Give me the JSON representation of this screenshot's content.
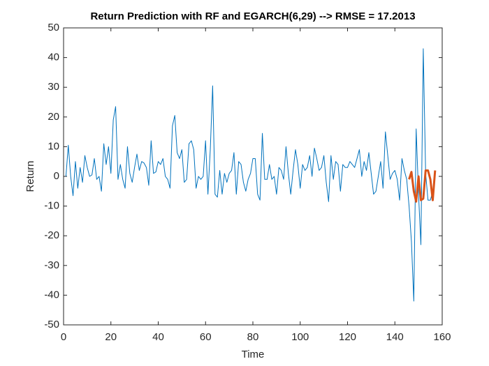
{
  "chart_data": {
    "type": "line",
    "title": "Return Prediction with RF and EGARCH(6,29) --> RMSE = 17.2013",
    "x_label": "Time",
    "y_label": "Return",
    "xlim": [
      0,
      160
    ],
    "xticks": [
      0,
      20,
      40,
      60,
      80,
      100,
      120,
      140,
      160
    ],
    "ylim": [
      -50,
      50
    ],
    "yticks": [
      -50,
      -40,
      -30,
      -20,
      -10,
      0,
      10,
      20,
      30,
      40,
      50
    ],
    "grid": false,
    "series": [
      {
        "color": "#0072bd",
        "width": 1,
        "x": [
          1,
          2,
          3,
          4,
          5,
          6,
          7,
          8,
          9,
          10,
          11,
          12,
          13,
          14,
          15,
          16,
          17,
          18,
          19,
          20,
          21,
          22,
          23,
          24,
          25,
          26,
          27,
          28,
          29,
          30,
          31,
          32,
          33,
          34,
          35,
          36,
          37,
          38,
          39,
          40,
          41,
          42,
          43,
          44,
          45,
          46,
          47,
          48,
          49,
          50,
          51,
          52,
          53,
          54,
          55,
          56,
          57,
          58,
          59,
          60,
          61,
          62,
          63,
          64,
          65,
          66,
          67,
          68,
          69,
          70,
          71,
          72,
          73,
          74,
          75,
          76,
          77,
          78,
          79,
          80,
          81,
          82,
          83,
          84,
          85,
          86,
          87,
          88,
          89,
          90,
          91,
          92,
          93,
          94,
          95,
          96,
          97,
          98,
          99,
          100,
          101,
          102,
          103,
          104,
          105,
          106,
          107,
          108,
          109,
          110,
          111,
          112,
          113,
          114,
          115,
          116,
          117,
          118,
          119,
          120,
          121,
          122,
          123,
          124,
          125,
          126,
          127,
          128,
          129,
          130,
          131,
          132,
          133,
          134,
          135,
          136,
          137,
          138,
          139,
          140,
          141,
          142,
          143,
          144,
          145,
          146,
          147,
          148,
          149,
          150,
          151,
          152,
          153,
          154,
          155,
          156
        ],
        "values": [
          0,
          10.5,
          0,
          -6.5,
          5,
          -4,
          3,
          -2,
          7,
          3,
          0,
          0.5,
          6,
          -1,
          0,
          -5,
          11,
          4,
          10,
          1,
          19,
          23.5,
          -1,
          4,
          -1,
          -4,
          10,
          1,
          -2,
          3,
          7.5,
          2,
          5,
          4.5,
          3,
          -3,
          12,
          1,
          1.5,
          5,
          4,
          6,
          0,
          -1,
          -4,
          17,
          20.5,
          8,
          6,
          9,
          -2,
          -1,
          11,
          12,
          9,
          -4,
          0,
          -1,
          0,
          12,
          -6,
          9,
          30.5,
          -6,
          -7,
          2,
          -6,
          1,
          -2,
          1,
          2,
          8,
          -6,
          5,
          4,
          -2,
          -5,
          -1,
          1,
          6,
          6,
          -6,
          -8,
          14.5,
          -1,
          -1,
          4,
          -1,
          0,
          -6,
          3,
          2,
          -1,
          10,
          1,
          -6,
          2,
          9,
          4,
          -4,
          4,
          2,
          3,
          7,
          0,
          9.5,
          6,
          2,
          3,
          7,
          -2,
          -8.5,
          7,
          -1,
          5,
          4,
          -5,
          4,
          3,
          3,
          5,
          4,
          3,
          6,
          9,
          0,
          5,
          2,
          8,
          1,
          -6,
          -5,
          0,
          5,
          -4,
          15,
          7,
          -1,
          1,
          2,
          -1,
          -8,
          6,
          2,
          -1,
          -10,
          -22,
          -42,
          16,
          -6,
          -23,
          43,
          1,
          -8,
          -8,
          -5
        ]
      },
      {
        "color": "#d95319",
        "width": 3,
        "x": [
          146,
          147,
          148,
          149,
          150,
          151,
          152,
          153,
          154,
          155,
          156,
          157
        ],
        "values": [
          -1,
          1.5,
          -5,
          -8.5,
          0,
          -8,
          -7.5,
          2,
          2,
          -1,
          -8,
          2
        ]
      }
    ]
  }
}
